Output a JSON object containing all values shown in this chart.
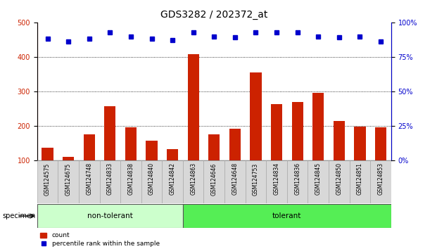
{
  "title": "GDS3282 / 202372_at",
  "categories": [
    "GSM124575",
    "GSM124675",
    "GSM124748",
    "GSM124833",
    "GSM124838",
    "GSM124840",
    "GSM124842",
    "GSM124863",
    "GSM124646",
    "GSM124648",
    "GSM124753",
    "GSM124834",
    "GSM124836",
    "GSM124845",
    "GSM124850",
    "GSM124851",
    "GSM124853"
  ],
  "bar_values": [
    137,
    110,
    175,
    258,
    197,
    158,
    133,
    408,
    175,
    193,
    355,
    264,
    270,
    296,
    215,
    198,
    197
  ],
  "percentile_values": [
    88,
    86,
    88,
    93,
    90,
    88,
    87,
    93,
    90,
    89,
    93,
    93,
    93,
    90,
    89,
    90,
    86
  ],
  "non_tolerant_count": 7,
  "bar_color": "#cc2200",
  "dot_color": "#0000cc",
  "bar_bottom": 100,
  "ylim_left": [
    100,
    500
  ],
  "ylim_right": [
    0,
    100
  ],
  "yticks_left": [
    100,
    200,
    300,
    400,
    500
  ],
  "yticks_right": [
    0,
    25,
    50,
    75,
    100
  ],
  "grid_lines": [
    200,
    300,
    400
  ],
  "non_tolerant_color": "#ccffcc",
  "tolerant_color": "#55ee55",
  "specimen_label": "specimen",
  "legend_items": [
    "count",
    "percentile rank within the sample"
  ],
  "title_fontsize": 10,
  "tick_fontsize": 7,
  "label_fontsize": 7.5,
  "background_color": "#ffffff"
}
